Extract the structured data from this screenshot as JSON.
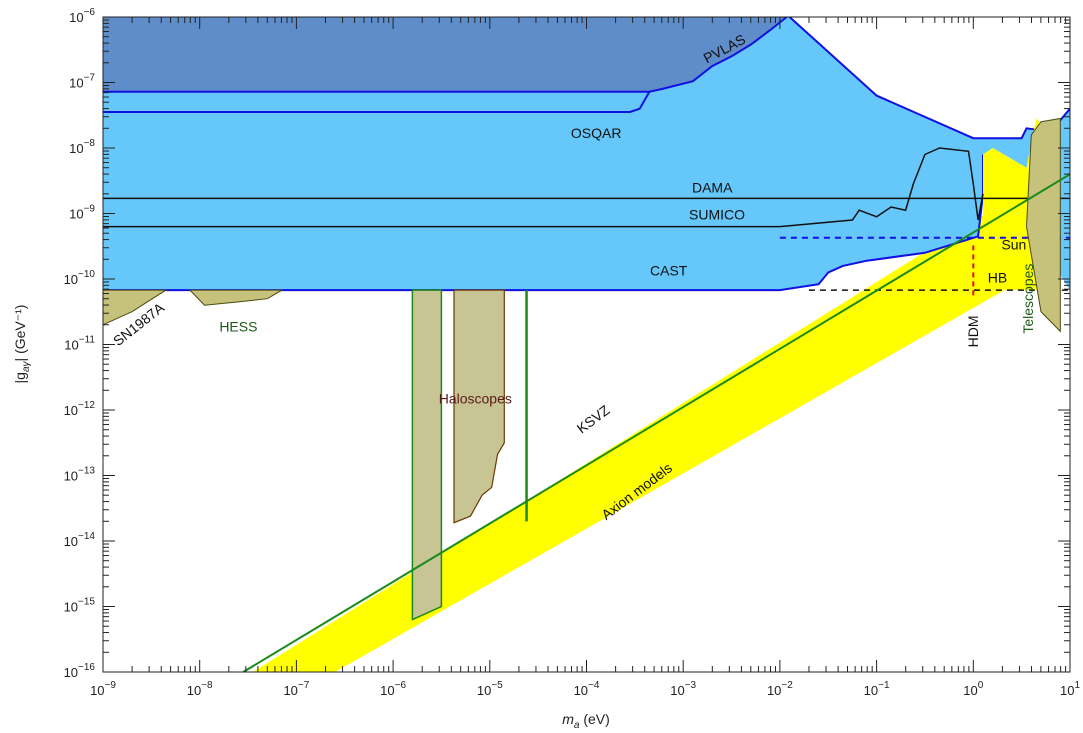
{
  "chart_data": {
    "type": "area",
    "xlabel": "m",
    "xlabel_sub": "a",
    "xlabel_unit": " (eV)",
    "ylabel": "|g",
    "ylabel_sub": "aγ",
    "ylabel_unit": "| (GeV⁻¹)",
    "x_scale": "log",
    "y_scale": "log",
    "xlim": [
      1e-09,
      10
    ],
    "ylim": [
      1e-16,
      1e-06
    ],
    "x_tick_exponents": [
      -9,
      -8,
      -7,
      -6,
      -5,
      -4,
      -3,
      -2,
      -1,
      0,
      1
    ],
    "y_tick_exponents": [
      -16,
      -15,
      -14,
      -13,
      -12,
      -11,
      -10,
      -9,
      -8,
      -7,
      -6
    ],
    "tick_base": "10",
    "colors": {
      "laser_region": "#5f8dca",
      "helioscope_region": "#66c7fb",
      "astro_region": "#c6c27b",
      "haloscope_region": "#c8c595",
      "axion_band": "#ffff00",
      "ksvz_line": "#1a8a1a",
      "blue_edge": "#1010e0",
      "hdm_line": "#e01010"
    },
    "labels": {
      "pvlas": "PVLAS",
      "osqar": "OSQAR",
      "dama": "DAMA",
      "sumico": "SUMICO",
      "cast": "CAST",
      "sun": "Sun",
      "hb": "HB",
      "hdm": "HDM",
      "telescopes": "Telescopes",
      "sn1987a": "SN1987A",
      "hess": "HESS",
      "haloscopes": "Haloscopes",
      "ksvz": "KSVZ",
      "axion_models": "Axion models"
    },
    "limits": {
      "pvlas": [
        [
          -9,
          -7.14
        ],
        [
          -3.35,
          -7.14
        ],
        [
          -3.22,
          -7.1
        ],
        [
          -2.9,
          -6.98
        ],
        [
          -2.7,
          -6.75
        ],
        [
          -2.5,
          -6.6
        ],
        [
          -2.3,
          -6.42
        ],
        [
          -2.1,
          -6.2
        ],
        [
          -1.93,
          -6.0
        ]
      ],
      "osqar": [
        [
          -9,
          -7.45
        ],
        [
          -3.55,
          -7.45
        ],
        [
          -3.45,
          -7.4
        ],
        [
          -3.35,
          -7.14
        ]
      ],
      "helioscope_top": [
        [
          -1.9,
          -6.0
        ],
        [
          -1.0,
          -7.2
        ],
        [
          0.0,
          -7.85
        ],
        [
          0.5,
          -7.85
        ],
        [
          0.55,
          -7.7
        ],
        [
          0.8,
          -7.75
        ],
        [
          1.0,
          -7.4
        ]
      ],
      "cast_edge": [
        [
          -9,
          -10.17
        ],
        [
          -2.0,
          -10.17
        ],
        [
          -1.6,
          -10.08
        ],
        [
          -1.5,
          -9.9
        ],
        [
          -1.35,
          -9.8
        ],
        [
          -1.1,
          -9.72
        ],
        [
          -0.5,
          -9.6
        ],
        [
          0.05,
          -9.35
        ],
        [
          0.1,
          -8.7
        ],
        [
          0.1,
          -8.1
        ]
      ],
      "dama": [
        [
          -9,
          -8.77
        ],
        [
          1,
          -8.77
        ]
      ],
      "sumico": [
        [
          -9,
          -9.2
        ],
        [
          -2.0,
          -9.2
        ],
        [
          -1.25,
          -9.1
        ],
        [
          -1.18,
          -8.95
        ],
        [
          -1.0,
          -9.05
        ],
        [
          -0.85,
          -8.9
        ],
        [
          -0.7,
          -8.95
        ],
        [
          -0.62,
          -8.55
        ],
        [
          -0.5,
          -8.1
        ],
        [
          -0.35,
          -8.0
        ],
        [
          -0.05,
          -8.05
        ],
        [
          0.0,
          -8.55
        ],
        [
          0.05,
          -9.1
        ],
        [
          0.1,
          -8.7
        ]
      ],
      "sun_y": -9.37,
      "hb_y": -10.17,
      "hb_start_x": -1.7,
      "hdm_x": 0.0,
      "hdm_y_range": [
        -10.25,
        -9.45
      ],
      "axion_band": {
        "lower": [
          [
            -6.6,
            -16
          ],
          [
            1,
            -9.6
          ]
        ],
        "upper": [
          [
            -7.45,
            -16
          ],
          [
            1,
            -8.2
          ]
        ]
      },
      "ksvz": [
        [
          -7.55,
          -16
        ],
        [
          1,
          -8.4
        ]
      ],
      "haloscope_adm": [
        [
          -5.8,
          -10.17
        ],
        [
          -5.8,
          -15.2
        ],
        [
          -5.5,
          -15.0
        ],
        [
          -5.5,
          -10.17
        ]
      ],
      "haloscope_steps": [
        [
          -5.37,
          -10.17
        ],
        [
          -5.37,
          -13.72
        ],
        [
          -5.2,
          -13.62
        ],
        [
          -5.08,
          -13.3
        ],
        [
          -4.98,
          -13.18
        ],
        [
          -4.92,
          -12.68
        ],
        [
          -4.85,
          -12.5
        ],
        [
          -4.85,
          -10.17
        ]
      ],
      "haloscope_line_x": -4.62,
      "haloscope_line_bottom": -13.7,
      "sn1987a": [
        [
          -9,
          -10.7
        ],
        [
          -8.7,
          -10.5
        ],
        [
          -8.35,
          -10.17
        ],
        [
          -9,
          -10.17
        ]
      ],
      "hess": [
        [
          -8.1,
          -10.17
        ],
        [
          -7.95,
          -10.4
        ],
        [
          -7.6,
          -10.35
        ],
        [
          -7.3,
          -10.3
        ],
        [
          -7.15,
          -10.17
        ]
      ],
      "telescopes": [
        [
          0.7,
          -7.6
        ],
        [
          0.9,
          -7.55
        ],
        [
          0.9,
          -10.8
        ],
        [
          0.7,
          -10.5
        ],
        [
          0.55,
          -9.2
        ],
        [
          0.6,
          -7.8
        ]
      ]
    }
  }
}
